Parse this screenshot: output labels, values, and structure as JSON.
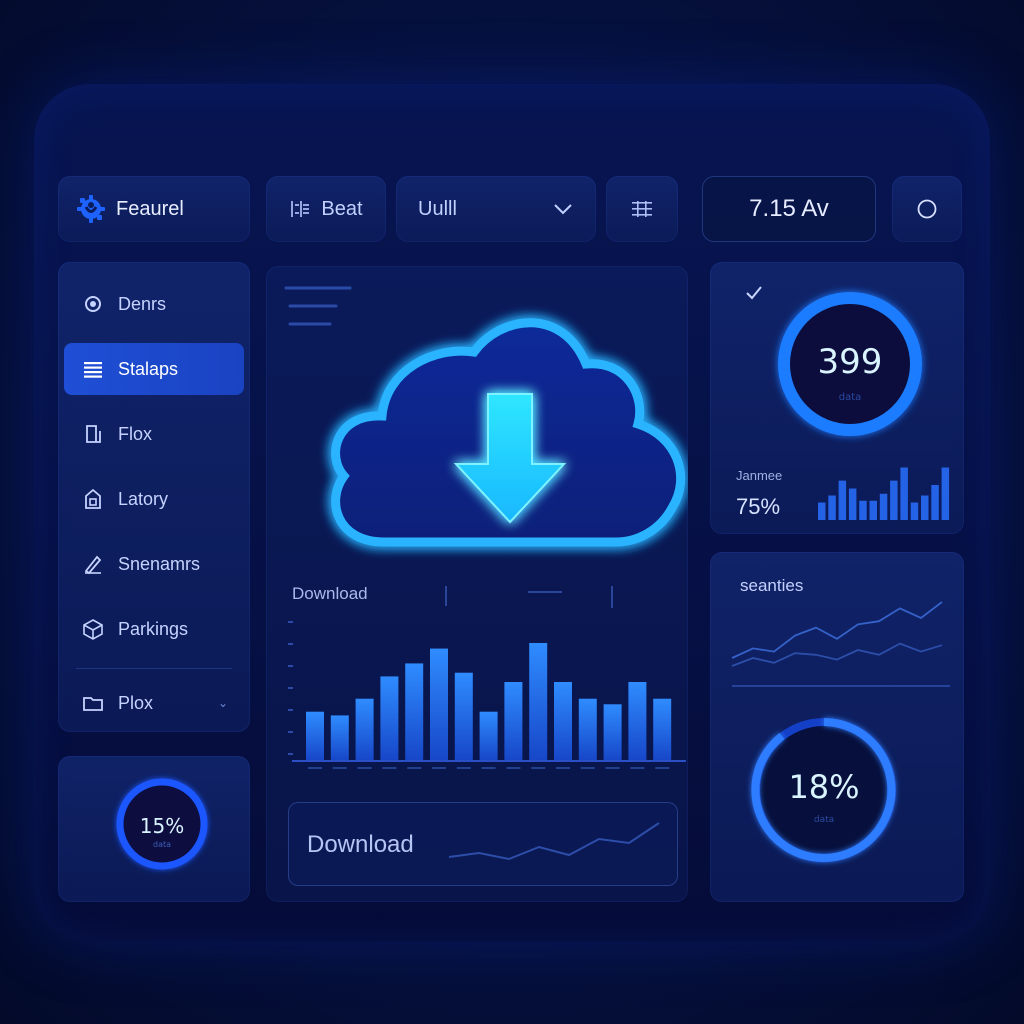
{
  "brand": {
    "name": "Feaurel",
    "logo_icon": "gear-logo-icon"
  },
  "toolbar": {
    "button1_label": "Beat",
    "dropdown_value": "Uulll",
    "grid_icon": "grid-icon",
    "readout": "7.15 Av",
    "circle_icon": "circle-icon"
  },
  "sidebar": {
    "items": [
      {
        "label": "Denrs",
        "icon": "gear-icon",
        "active": false
      },
      {
        "label": "Stalaps",
        "icon": "list-icon",
        "active": true
      },
      {
        "label": "Flox",
        "icon": "document-icon",
        "active": false
      },
      {
        "label": "Latory",
        "icon": "tag-icon",
        "active": false
      },
      {
        "label": "Snenamrs",
        "icon": "pen-icon",
        "active": false
      },
      {
        "label": "Parkings",
        "icon": "cube-icon",
        "active": false
      },
      {
        "label": "Plox",
        "icon": "folder-icon",
        "active": false
      }
    ]
  },
  "bottom_left": {
    "gauge_value": "15%",
    "gauge_level": 0.15
  },
  "center": {
    "chart_label": "Download",
    "download_button_label": "Download",
    "chart_data": {
      "type": "bar",
      "values": [
        26,
        24,
        33,
        45,
        52,
        60,
        47,
        26,
        42,
        63,
        42,
        33,
        30,
        42,
        33
      ]
    }
  },
  "right_top": {
    "gauge_value": "399",
    "label": "Janmee",
    "percent": "75%",
    "chart_data": {
      "type": "bar",
      "values": [
        20,
        28,
        45,
        36,
        22,
        22,
        30,
        45,
        60,
        20,
        28,
        40,
        60
      ]
    }
  },
  "right_bottom": {
    "title": "seanties",
    "gauge_value": "18%",
    "chart_data": {
      "type": "line",
      "series": [
        {
          "values": [
            20,
            32,
            28,
            48,
            58,
            44,
            62,
            66,
            82,
            70,
            90
          ]
        },
        {
          "values": [
            10,
            20,
            14,
            26,
            24,
            18,
            30,
            24,
            38,
            28,
            36
          ]
        }
      ]
    }
  },
  "colors": {
    "accent": "#2f7dff",
    "glow": "#29c6ff",
    "arrow": "#35e0ff"
  }
}
